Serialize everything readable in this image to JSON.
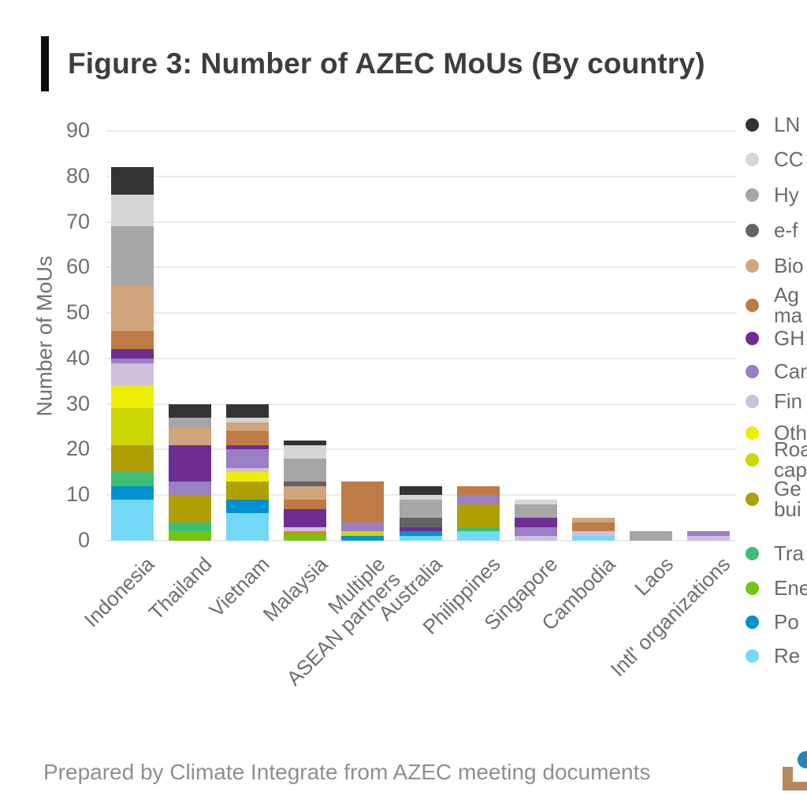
{
  "header": {
    "title": "Figure 3: Number of AZEC MoUs (By country)"
  },
  "footer": {
    "caption": "Prepared by Climate Integrate from AZEC meeting documents",
    "logo": "climate-integrate-logo (partially cut off at right edge)"
  },
  "chart_data": {
    "type": "bar",
    "stacked": true,
    "title": "Figure 3: Number of AZEC MoUs (By country)",
    "xlabel": "",
    "ylabel": "Number of MoUs",
    "ylim": [
      0,
      90
    ],
    "yticks": [
      0,
      10,
      20,
      30,
      40,
      50,
      60,
      70,
      80,
      90
    ],
    "grid": true,
    "legend_position": "right (labels clipped at image edge)",
    "categories": [
      "Indonesia",
      "Thailand",
      "Vietnam",
      "Malaysia",
      "Multiple ASEAN partners",
      "Australia",
      "Philippines",
      "Singapore",
      "Cambodia",
      "Laos",
      "Intl' organizations"
    ],
    "category_label_lines": [
      [
        "Indonesia"
      ],
      [
        "Thailand"
      ],
      [
        "Vietnam"
      ],
      [
        "Malaysia"
      ],
      [
        "Multiple",
        "ASEAN partners"
      ],
      [
        "Australia"
      ],
      [
        "Philippines"
      ],
      [
        "Singapore"
      ],
      [
        "Cambodia"
      ],
      [
        "Laos"
      ],
      [
        "Intl' organizations"
      ]
    ],
    "totals": [
      82,
      30,
      30,
      22,
      13,
      12,
      12,
      9,
      5,
      2,
      2
    ],
    "stack_note": "series listed in legend order (top of stack first); bottom of each bar is the last series",
    "series": [
      {
        "name": "LN",
        "label_lines": [
          "LN"
        ],
        "color": "#333333",
        "values": [
          6,
          3,
          3,
          1,
          0,
          2,
          0,
          0,
          0,
          0,
          0
        ]
      },
      {
        "name": "CC",
        "label_lines": [
          "CC"
        ],
        "color": "#d6d6d6",
        "values": [
          7,
          0,
          1,
          3,
          0,
          1,
          0,
          1,
          0,
          0,
          0
        ]
      },
      {
        "name": "Hy",
        "label_lines": [
          "Hy"
        ],
        "color": "#a6a6a6",
        "values": [
          13,
          2,
          0,
          5,
          0,
          4,
          0,
          3,
          0,
          2,
          0
        ]
      },
      {
        "name": "e-f",
        "label_lines": [
          "e-f"
        ],
        "color": "#636363",
        "values": [
          0,
          0,
          0,
          1,
          0,
          2,
          0,
          0,
          0,
          0,
          0
        ]
      },
      {
        "name": "Bio",
        "label_lines": [
          "Bio"
        ],
        "color": "#d0a57c",
        "values": [
          10,
          4,
          2,
          3,
          0,
          0,
          0,
          0,
          1,
          0,
          0
        ]
      },
      {
        "name": "Ag/ma",
        "label_lines": [
          "Ag",
          "ma"
        ],
        "color": "#bf7b45",
        "values": [
          4,
          0,
          3,
          2,
          9,
          0,
          2,
          0,
          2,
          0,
          0
        ]
      },
      {
        "name": "GH",
        "label_lines": [
          "GH"
        ],
        "color": "#6f2c91",
        "values": [
          2,
          8,
          1,
          4,
          0,
          1,
          0,
          2,
          0,
          0,
          0
        ]
      },
      {
        "name": "Car",
        "label_lines": [
          "Car"
        ],
        "color": "#9a7fc3",
        "values": [
          1,
          3,
          4,
          0,
          2,
          0,
          2,
          2,
          0,
          0,
          1
        ]
      },
      {
        "name": "Fin",
        "label_lines": [
          "Fin"
        ],
        "color": "#cfc0de",
        "values": [
          5,
          0,
          1,
          1,
          0,
          0,
          0,
          1,
          1,
          0,
          1
        ]
      },
      {
        "name": "Oth",
        "label_lines": [
          "Oth"
        ],
        "color": "#eef000",
        "values": [
          5,
          0,
          2,
          0,
          0,
          0,
          0,
          0,
          0,
          0,
          0
        ]
      },
      {
        "name": "Roa/cap",
        "label_lines": [
          "Roa",
          "cap"
        ],
        "color": "#ccd600",
        "values": [
          8,
          0,
          0,
          0,
          1,
          0,
          0,
          0,
          0,
          0,
          0
        ]
      },
      {
        "name": "Ge/bui",
        "label_lines": [
          "Ge",
          "bui"
        ],
        "color": "#b0a005",
        "values": [
          6,
          6,
          4,
          1,
          0,
          0,
          5,
          0,
          0,
          0,
          0
        ]
      },
      {
        "name": "Tra",
        "label_lines": [
          "Tra"
        ],
        "color": "#3ebd75",
        "values": [
          3,
          2,
          0,
          0,
          0,
          0,
          1,
          0,
          0,
          0,
          0
        ]
      },
      {
        "name": "Ene",
        "label_lines": [
          "Ene"
        ],
        "color": "#74c40e",
        "values": [
          0,
          2,
          0,
          1,
          0,
          0,
          0,
          0,
          0,
          0,
          0
        ]
      },
      {
        "name": "Po",
        "label_lines": [
          "Po"
        ],
        "color": "#0092cf",
        "values": [
          3,
          0,
          3,
          0,
          1,
          1,
          0,
          0,
          0,
          0,
          0
        ]
      },
      {
        "name": "Re",
        "label_lines": [
          "Re"
        ],
        "color": "#74d9f7",
        "values": [
          9,
          0,
          6,
          0,
          0,
          1,
          2,
          0,
          1,
          0,
          0
        ]
      }
    ]
  },
  "style": {
    "accent_bar_color": "#0d0d0d",
    "title_color": "#3d3d3d",
    "axis_text_color": "#6f6f6f",
    "gridline_color": "#ebebeb",
    "caption_color": "#8f8f8f",
    "logo_brown": "#b5875f",
    "logo_blue": "#1f86c0"
  }
}
